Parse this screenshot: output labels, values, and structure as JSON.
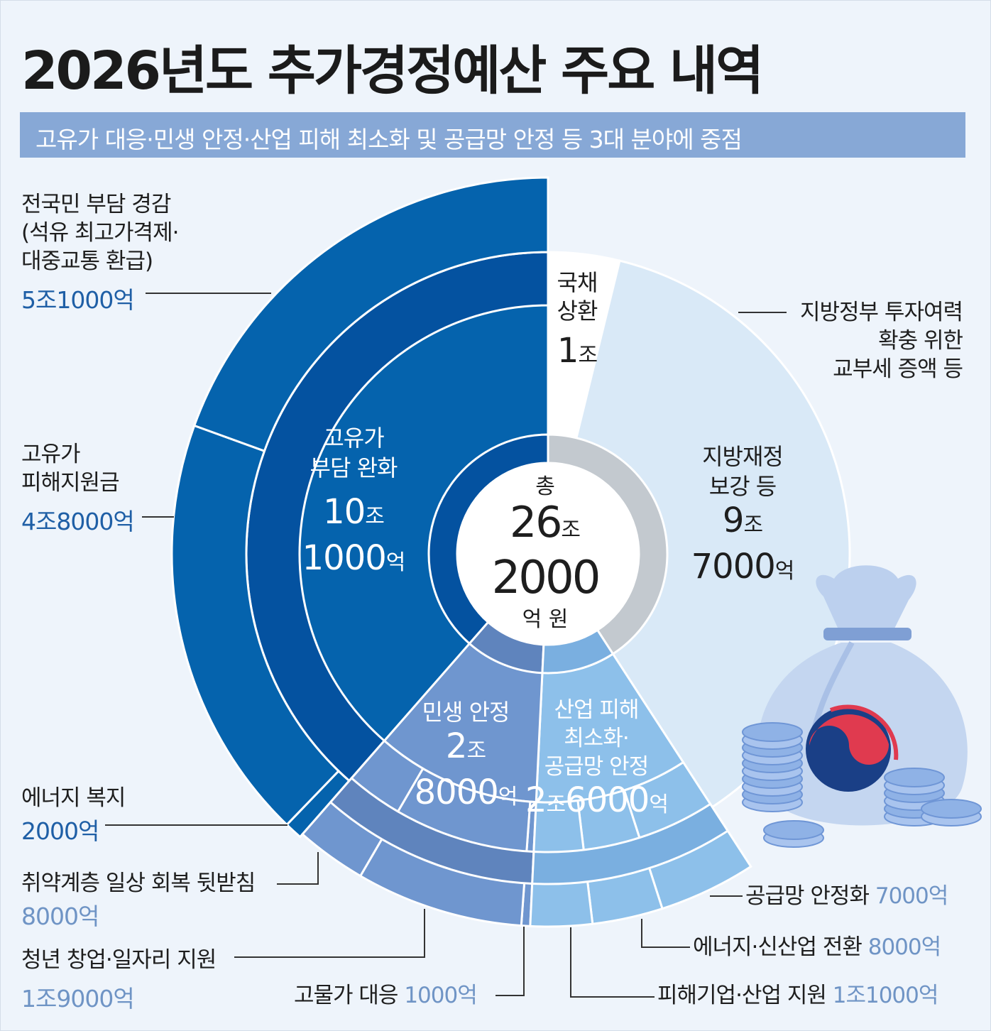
{
  "title": "2026년도 추가경정예산 주요 내역",
  "subtitle": "고유가 대응·민생 안정·산업 피해 최소화 및 공급망 안정 등 3대 분야에 중점",
  "center": {
    "prefix": "총",
    "num1": "26",
    "unit1": "조",
    "num2": "2000",
    "unit2": "억 원"
  },
  "inner_labels": {
    "oil": {
      "name1": "고유가",
      "name2": "부담 완화",
      "num1": "10",
      "unit1": "조",
      "num2": "1000",
      "unit2": "억"
    },
    "livelihood": {
      "name": "민생 안정",
      "num1": "2",
      "unit1": "조",
      "num2": "8000",
      "unit2": "억"
    },
    "industry": {
      "name1": "산업 피해",
      "name2": "최소화·",
      "name3": "공급망 안정",
      "num1": "2",
      "unit1": "조",
      "num2": "6000",
      "unit2": "억"
    },
    "local": {
      "name1": "지방재정",
      "name2": "보강 등",
      "num1": "9",
      "unit1": "조",
      "num2": "7000",
      "unit2": "억"
    },
    "debt": {
      "name1": "국채",
      "name2": "상환",
      "num": "1",
      "unit": "조"
    }
  },
  "outer_labels": {
    "burden": {
      "line1": "전국민 부담 경감",
      "line2": "(석유 최고가격제·",
      "line3": "대중교통 환급)",
      "amount": "5조1000억"
    },
    "relief": {
      "line1": "고유가",
      "line2": "피해지원금",
      "amount": "4조8000억"
    },
    "energy_welfare": {
      "line1": "에너지 복지",
      "amount": "2000억"
    },
    "vulnerable": {
      "line1": "취약계층 일상 회복 뒷받침",
      "amount": "8000억"
    },
    "youth": {
      "line1": "청년 창업·일자리 지원",
      "amount": "1조9000억"
    },
    "prices": {
      "name": "고물가 대응",
      "amount": "1000억"
    },
    "firms": {
      "name": "피해기업·산업 지원",
      "amount": "1조1000억"
    },
    "energy_transition": {
      "name": "에너지·신산업 전환",
      "amount": "8000억"
    },
    "supply": {
      "name": "공급망 안정화",
      "amount": "7000억"
    },
    "local_note": {
      "line1": "지방정부 투자여력",
      "line2": "확충 위한",
      "line3": "교부세 증액 등"
    }
  },
  "chart_data": {
    "type": "sunburst",
    "unit": "억 원",
    "total": 262000,
    "inner": [
      {
        "name": "고유가 부담 완화",
        "value": 101000
      },
      {
        "name": "민생 안정",
        "value": 28000
      },
      {
        "name": "산업 피해 최소화·공급망 안정",
        "value": 26000
      },
      {
        "name": "지방재정 보강 등",
        "value": 97000
      },
      {
        "name": "국채 상환",
        "value": 10000
      }
    ],
    "outer": [
      {
        "parent": "고유가 부담 완화",
        "name": "전국민 부담 경감",
        "value": 51000
      },
      {
        "parent": "고유가 부담 완화",
        "name": "고유가 피해지원금",
        "value": 48000
      },
      {
        "parent": "고유가 부담 완화",
        "name": "에너지 복지",
        "value": 2000
      },
      {
        "parent": "민생 안정",
        "name": "취약계층 일상 회복 뒷받침",
        "value": 8000
      },
      {
        "parent": "민생 안정",
        "name": "청년 창업·일자리 지원",
        "value": 19000
      },
      {
        "parent": "민생 안정",
        "name": "고물가 대응",
        "value": 1000
      },
      {
        "parent": "산업 피해 최소화·공급망 안정",
        "name": "피해기업·산업 지원",
        "value": 11000
      },
      {
        "parent": "산업 피해 최소화·공급망 안정",
        "name": "에너지·신산업 전환",
        "value": 8000
      },
      {
        "parent": "산업 피해 최소화·공급망 안정",
        "name": "공급망 안정화",
        "value": 7000
      }
    ],
    "colors": {
      "oil": "#0563ad",
      "oil_dark": "#0452a0",
      "livelihood": "#6f96cf",
      "livelihood_dark": "#5f84bd",
      "industry": "#8dc0ea",
      "industry_dark": "#7aafe0",
      "local": "#d9e9f7",
      "debt": "#ffffff"
    }
  }
}
